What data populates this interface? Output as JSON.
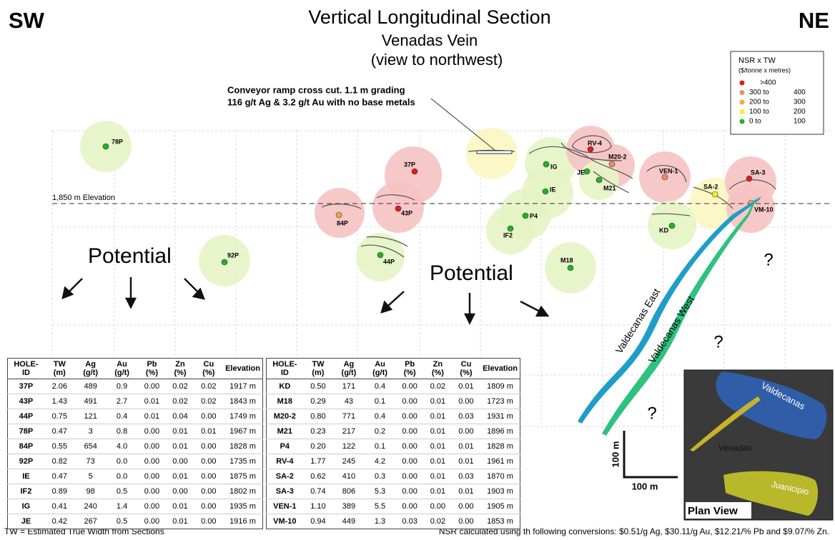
{
  "header": {
    "left": "SW",
    "right": "NE",
    "title": "Vertical Longitudinal Section",
    "subtitle": "Venadas Vein",
    "view": "(view to northwest)"
  },
  "legend": {
    "title": "NSR x TW",
    "unit": "($/tonne x metres)",
    "entries": [
      {
        "low": ">400",
        "color": "#e31a1c"
      },
      {
        "low": "300 to",
        "high": "400",
        "color": "#f4876a"
      },
      {
        "low": "200 to",
        "high": "300",
        "color": "#f5a447"
      },
      {
        "low": "100 to",
        "high": "200",
        "color": "#f7f31a"
      },
      {
        "low": "0 to",
        "high": "100",
        "color": "#22b322"
      }
    ]
  },
  "annotation": {
    "line1": "Conveyor ramp cross cut. 1.1 m grading",
    "line2": "116 g/t Ag & 3.2 g/t Au with no base metals"
  },
  "elevation_label": "1,850 m Elevation",
  "potential": [
    "Potential",
    "Potential"
  ],
  "unknowns": [
    "?",
    "?",
    "?"
  ],
  "veins": [
    "Valdecanas East",
    "Valdecanas West"
  ],
  "scale": {
    "vertical": "100 m",
    "horizontal": "100 m"
  },
  "plan_view": {
    "title": "Plan View",
    "labels": [
      "Valdecanas",
      "Venadas",
      "Juanicipio"
    ]
  },
  "holes": [
    {
      "label": "78P",
      "color": "#22b322"
    },
    {
      "label": "37P",
      "color": "#e31a1c"
    },
    {
      "label": "43P",
      "color": "#e31a1c"
    },
    {
      "label": "84P",
      "color": "#f5a447"
    },
    {
      "label": "92P",
      "color": "#22b322"
    },
    {
      "label": "44P",
      "color": "#22b322"
    },
    {
      "label": "IG",
      "color": "#22b322"
    },
    {
      "label": "IE",
      "color": "#22b322"
    },
    {
      "label": "JE",
      "color": "#22b322"
    },
    {
      "label": "RV-4",
      "color": "#e31a1c"
    },
    {
      "label": "M20-2",
      "color": "#f4876a"
    },
    {
      "label": "M21",
      "color": "#22b322"
    },
    {
      "label": "P4",
      "color": "#22b322"
    },
    {
      "label": "IF2",
      "color": "#22b322"
    },
    {
      "label": "M18",
      "color": "#22b322"
    },
    {
      "label": "VEN-1",
      "color": "#f4876a"
    },
    {
      "label": "SA-2",
      "color": "#f7f31a"
    },
    {
      "label": "SA-3",
      "color": "#e31a1c"
    },
    {
      "label": "VM-10",
      "color": "#f5a447"
    },
    {
      "label": "KD",
      "color": "#22b322"
    }
  ],
  "tables": [
    {
      "header": [
        "HOLE-ID",
        "TW (m)",
        "Ag (g/t)",
        "Au (g/t)",
        "Pb (%)",
        "Zn (%)",
        "Cu (%)",
        "Elevation"
      ],
      "rows": [
        [
          "37P",
          "2.06",
          "489",
          "0.9",
          "0.00",
          "0.02",
          "0.02",
          "1917 m"
        ],
        [
          "43P",
          "1.43",
          "491",
          "2.7",
          "0.01",
          "0.02",
          "0.02",
          "1843 m"
        ],
        [
          "44P",
          "0.75",
          "121",
          "0.4",
          "0.01",
          "0.04",
          "0.00",
          "1749 m"
        ],
        [
          "78P",
          "0.47",
          "3",
          "0.8",
          "0.00",
          "0.01",
          "0.01",
          "1967 m"
        ],
        [
          "84P",
          "0.55",
          "654",
          "4.0",
          "0.00",
          "0.01",
          "0.00",
          "1828 m"
        ],
        [
          "92P",
          "0.82",
          "73",
          "0.0",
          "0.00",
          "0.00",
          "0.00",
          "1735 m"
        ],
        [
          "IE",
          "0.47",
          "5",
          "0.0",
          "0.00",
          "0.01",
          "0.00",
          "1875 m"
        ],
        [
          "IF2",
          "0.89",
          "98",
          "0.5",
          "0.00",
          "0.00",
          "0.00",
          "1802 m"
        ],
        [
          "IG",
          "0.41",
          "240",
          "1.4",
          "0.00",
          "0.01",
          "0.00",
          "1935 m"
        ],
        [
          "JE",
          "0.42",
          "267",
          "0.5",
          "0.00",
          "0.01",
          "0.00",
          "1916 m"
        ]
      ]
    },
    {
      "header": [
        "HOLE-ID",
        "TW (m)",
        "Ag (g/t)",
        "Au (g/t)",
        "Pb (%)",
        "Zn (%)",
        "Cu (%)",
        "Elevation"
      ],
      "rows": [
        [
          "KD",
          "0.50",
          "171",
          "0.4",
          "0.00",
          "0.02",
          "0.01",
          "1809 m"
        ],
        [
          "M18",
          "0.29",
          "43",
          "0.1",
          "0.00",
          "0.01",
          "0.00",
          "1723 m"
        ],
        [
          "M20-2",
          "0.80",
          "771",
          "0.4",
          "0.00",
          "0.01",
          "0.03",
          "1931 m"
        ],
        [
          "M21",
          "0.23",
          "217",
          "0.2",
          "0.00",
          "0.01",
          "0.00",
          "1896 m"
        ],
        [
          "P4",
          "0.20",
          "122",
          "0.1",
          "0.00",
          "0.01",
          "0.01",
          "1828 m"
        ],
        [
          "RV-4",
          "1.77",
          "245",
          "4.2",
          "0.00",
          "0.01",
          "0.01",
          "1961 m"
        ],
        [
          "SA-2",
          "0.62",
          "410",
          "0.3",
          "0.00",
          "0.01",
          "0.03",
          "1870 m"
        ],
        [
          "SA-3",
          "0.74",
          "806",
          "5.3",
          "0.00",
          "0.01",
          "0.01",
          "1903 m"
        ],
        [
          "VEN-1",
          "1.10",
          "389",
          "5.5",
          "0.00",
          "0.00",
          "0.00",
          "1905 m"
        ],
        [
          "VM-10",
          "0.94",
          "449",
          "1.3",
          "0.03",
          "0.02",
          "0.00",
          "1853 m"
        ]
      ]
    }
  ],
  "footer": {
    "left": "TW = Estimated True Width from Sections",
    "right": "NSR calculated using th following conversions: $0.51/g Ag, $30.11/g Au, $12.21/% Pb and $9.07/% Zn."
  }
}
